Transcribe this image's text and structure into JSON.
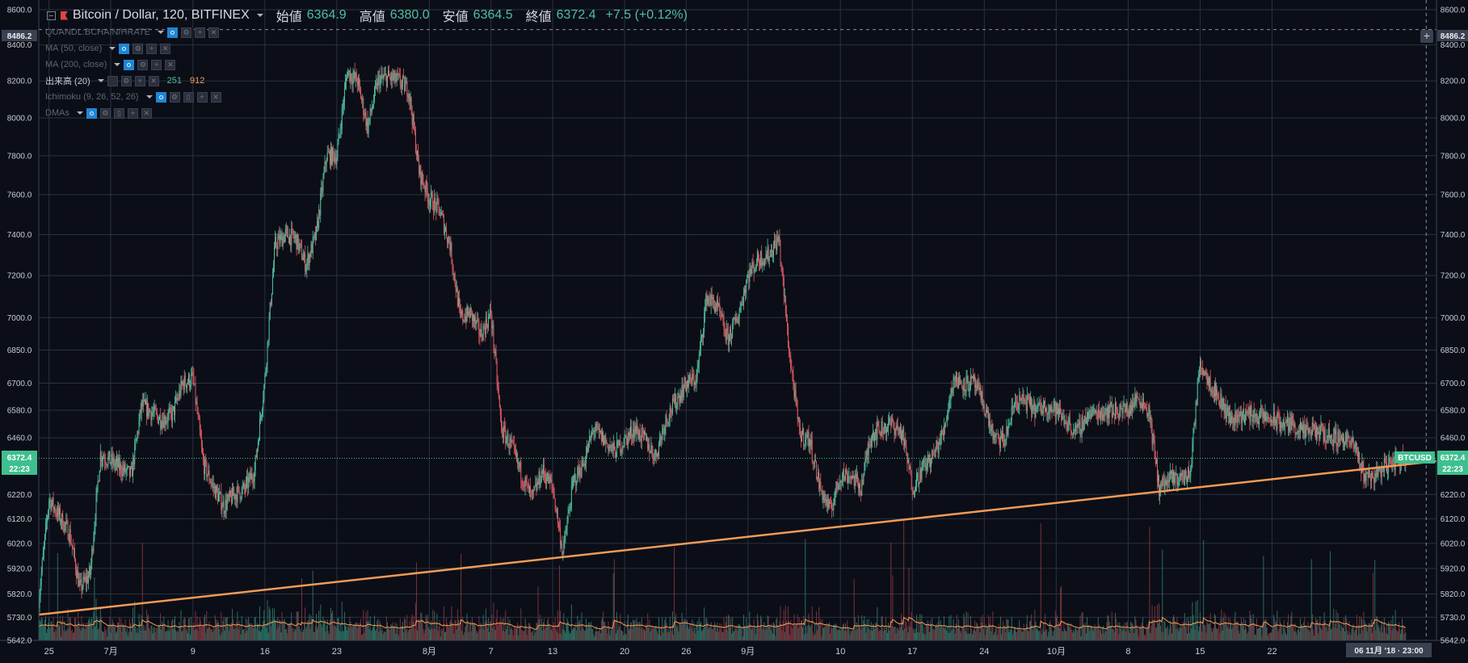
{
  "header": {
    "symbol": "Bitcoin / Dollar, 120, BITFINEX",
    "open_label": "始値",
    "open_value": "6364.9",
    "high_label": "高値",
    "high_value": "6380.0",
    "low_label": "安値",
    "low_value": "6364.5",
    "close_label": "終値",
    "close_value": "6372.4",
    "change": "+7.5 (+0.12%)"
  },
  "indicators": [
    {
      "name": "QUANDL:BCHAIN/HRATE"
    },
    {
      "name": "MA (50, close)"
    },
    {
      "name": "MA (200, close)"
    },
    {
      "name": "出来高 (20)",
      "value1": "251",
      "value2": "912"
    },
    {
      "name": "Ichimoku (9, 26, 52, 26)"
    },
    {
      "name": "DMAs"
    }
  ],
  "price_scale": {
    "ticks": [
      "8600.0",
      "8400.0",
      "8200.0",
      "8000.0",
      "7800.0",
      "7600.0",
      "7400.0",
      "7200.0",
      "7000.0",
      "6850.0",
      "6700.0",
      "6580.0",
      "6460.0",
      "6220.0",
      "6120.0",
      "6020.0",
      "5920.0",
      "5820.0",
      "5730.0",
      "5642.0"
    ],
    "crosshair_price": "8486.2",
    "last_price": "6372.4",
    "countdown": "22:23",
    "symbol_tag": "BTCUSD"
  },
  "time_scale": {
    "ticks": [
      "25",
      "7月",
      "9",
      "16",
      "23",
      "8月",
      "7",
      "13",
      "20",
      "26",
      "9月",
      "10",
      "17",
      "24",
      "10月",
      "8",
      "15",
      "22"
    ],
    "crosshair_time": "06 11月 '18 · 23:00"
  },
  "colors": {
    "background": "#0b0e17",
    "grid": "#2a3140",
    "up": "#4fbf9f",
    "down": "#e15b64",
    "trendline": "#f29b56",
    "volume_ma": "#f29b56",
    "last_price": "#3fbf8f"
  },
  "chart_data": {
    "type": "candlestick",
    "symbol": "Bitcoin / Dollar, 120, BITFINEX",
    "y_scale": "log",
    "ylim": [
      5642,
      8600
    ],
    "x_range": [
      "2018-06-24",
      "2018-11-07"
    ],
    "x_ticks": [
      {
        "date": "2018-06-25",
        "label": "25"
      },
      {
        "date": "2018-07-01",
        "label": "7月"
      },
      {
        "date": "2018-07-09",
        "label": "9"
      },
      {
        "date": "2018-07-16",
        "label": "16"
      },
      {
        "date": "2018-07-23",
        "label": "23"
      },
      {
        "date": "2018-08-01",
        "label": "8月"
      },
      {
        "date": "2018-08-07",
        "label": "7"
      },
      {
        "date": "2018-08-13",
        "label": "13"
      },
      {
        "date": "2018-08-20",
        "label": "20"
      },
      {
        "date": "2018-08-26",
        "label": "26"
      },
      {
        "date": "2018-09-01",
        "label": "9月"
      },
      {
        "date": "2018-09-10",
        "label": "10"
      },
      {
        "date": "2018-09-17",
        "label": "17"
      },
      {
        "date": "2018-09-24",
        "label": "24"
      },
      {
        "date": "2018-10-01",
        "label": "10月"
      },
      {
        "date": "2018-10-08",
        "label": "8"
      },
      {
        "date": "2018-10-15",
        "label": "15"
      },
      {
        "date": "2018-10-22",
        "label": "22"
      }
    ],
    "price_path": [
      [
        "2018-06-24",
        5800
      ],
      [
        "2018-06-25",
        6200
      ],
      [
        "2018-06-26",
        6130
      ],
      [
        "2018-06-27",
        6060
      ],
      [
        "2018-06-28",
        5840
      ],
      [
        "2018-06-29",
        5900
      ],
      [
        "2018-06-30",
        6390
      ],
      [
        "2018-07-01",
        6360
      ],
      [
        "2018-07-03",
        6300
      ],
      [
        "2018-07-04",
        6600
      ],
      [
        "2018-07-06",
        6540
      ],
      [
        "2018-07-07",
        6560
      ],
      [
        "2018-07-08",
        6700
      ],
      [
        "2018-07-09",
        6720
      ],
      [
        "2018-07-10",
        6350
      ],
      [
        "2018-07-11",
        6250
      ],
      [
        "2018-07-12",
        6170
      ],
      [
        "2018-07-13",
        6220
      ],
      [
        "2018-07-14",
        6240
      ],
      [
        "2018-07-15",
        6320
      ],
      [
        "2018-07-16",
        6720
      ],
      [
        "2018-07-17",
        7350
      ],
      [
        "2018-07-18",
        7400
      ],
      [
        "2018-07-19",
        7380
      ],
      [
        "2018-07-20",
        7250
      ],
      [
        "2018-07-21",
        7400
      ],
      [
        "2018-07-22",
        7800
      ],
      [
        "2018-07-23",
        7800
      ],
      [
        "2018-07-24",
        8250
      ],
      [
        "2018-07-25",
        8200
      ],
      [
        "2018-07-26",
        7950
      ],
      [
        "2018-07-27",
        8200
      ],
      [
        "2018-07-28",
        8220
      ],
      [
        "2018-07-29",
        8200
      ],
      [
        "2018-07-30",
        8150
      ],
      [
        "2018-07-31",
        7720
      ],
      [
        "2018-08-01",
        7580
      ],
      [
        "2018-08-02",
        7520
      ],
      [
        "2018-08-03",
        7350
      ],
      [
        "2018-08-04",
        7000
      ],
      [
        "2018-08-05",
        7020
      ],
      [
        "2018-08-06",
        6920
      ],
      [
        "2018-08-07",
        7020
      ],
      [
        "2018-08-08",
        6500
      ],
      [
        "2018-08-09",
        6420
      ],
      [
        "2018-08-10",
        6300
      ],
      [
        "2018-08-11",
        6200
      ],
      [
        "2018-08-12",
        6320
      ],
      [
        "2018-08-13",
        6250
      ],
      [
        "2018-08-14",
        5980
      ],
      [
        "2018-08-15",
        6270
      ],
      [
        "2018-08-16",
        6350
      ],
      [
        "2018-08-17",
        6500
      ],
      [
        "2018-08-18",
        6450
      ],
      [
        "2018-08-19",
        6400
      ],
      [
        "2018-08-20",
        6450
      ],
      [
        "2018-08-21",
        6500
      ],
      [
        "2018-08-22",
        6450
      ],
      [
        "2018-08-23",
        6380
      ],
      [
        "2018-08-24",
        6540
      ],
      [
        "2018-08-25",
        6620
      ],
      [
        "2018-08-26",
        6700
      ],
      [
        "2018-08-27",
        6720
      ],
      [
        "2018-08-28",
        7100
      ],
      [
        "2018-08-29",
        7050
      ],
      [
        "2018-08-30",
        6900
      ],
      [
        "2018-08-31",
        7000
      ],
      [
        "2018-09-01",
        7200
      ],
      [
        "2018-09-02",
        7280
      ],
      [
        "2018-09-03",
        7300
      ],
      [
        "2018-09-04",
        7380
      ],
      [
        "2018-09-05",
        6850
      ],
      [
        "2018-09-06",
        6480
      ],
      [
        "2018-09-07",
        6450
      ],
      [
        "2018-09-08",
        6250
      ],
      [
        "2018-09-09",
        6150
      ],
      [
        "2018-09-10",
        6300
      ],
      [
        "2018-09-11",
        6300
      ],
      [
        "2018-09-12",
        6250
      ],
      [
        "2018-09-13",
        6480
      ],
      [
        "2018-09-14",
        6500
      ],
      [
        "2018-09-15",
        6520
      ],
      [
        "2018-09-16",
        6480
      ],
      [
        "2018-09-17",
        6250
      ],
      [
        "2018-09-18",
        6330
      ],
      [
        "2018-09-19",
        6380
      ],
      [
        "2018-09-20",
        6480
      ],
      [
        "2018-09-21",
        6720
      ],
      [
        "2018-09-22",
        6700
      ],
      [
        "2018-09-23",
        6700
      ],
      [
        "2018-09-24",
        6600
      ],
      [
        "2018-09-25",
        6450
      ],
      [
        "2018-09-26",
        6450
      ],
      [
        "2018-09-27",
        6620
      ],
      [
        "2018-09-28",
        6620
      ],
      [
        "2018-09-29",
        6580
      ],
      [
        "2018-09-30",
        6600
      ],
      [
        "2018-10-01",
        6580
      ],
      [
        "2018-10-03",
        6480
      ],
      [
        "2018-10-04",
        6560
      ],
      [
        "2018-10-06",
        6580
      ],
      [
        "2018-10-08",
        6580
      ],
      [
        "2018-10-09",
        6640
      ],
      [
        "2018-10-10",
        6580
      ],
      [
        "2018-10-11",
        6250
      ],
      [
        "2018-10-12",
        6280
      ],
      [
        "2018-10-13",
        6290
      ],
      [
        "2018-10-14",
        6300
      ],
      [
        "2018-10-15",
        6800
      ],
      [
        "2018-10-16",
        6700
      ],
      [
        "2018-10-17",
        6620
      ],
      [
        "2018-10-18",
        6540
      ],
      [
        "2018-10-19",
        6560
      ],
      [
        "2018-10-20",
        6560
      ],
      [
        "2018-10-22",
        6540
      ],
      [
        "2018-10-23",
        6520
      ],
      [
        "2018-10-24",
        6520
      ],
      [
        "2018-10-25",
        6480
      ],
      [
        "2018-10-26",
        6490
      ],
      [
        "2018-10-27",
        6480
      ],
      [
        "2018-10-28",
        6460
      ],
      [
        "2018-10-29",
        6460
      ],
      [
        "2018-10-30",
        6420
      ],
      [
        "2018-10-31",
        6300
      ],
      [
        "2018-11-01",
        6300
      ],
      [
        "2018-11-02",
        6340
      ],
      [
        "2018-11-03",
        6360
      ],
      [
        "2018-11-04",
        6372
      ]
    ],
    "trendline": {
      "start": [
        "2018-06-24",
        5740
      ],
      "end": [
        "2018-11-07",
        6360
      ]
    },
    "crosshair": {
      "date": "2018-11-06",
      "price": 8486.2
    },
    "last_price": 6372.4,
    "volume_ma": 912,
    "volume": 251
  }
}
